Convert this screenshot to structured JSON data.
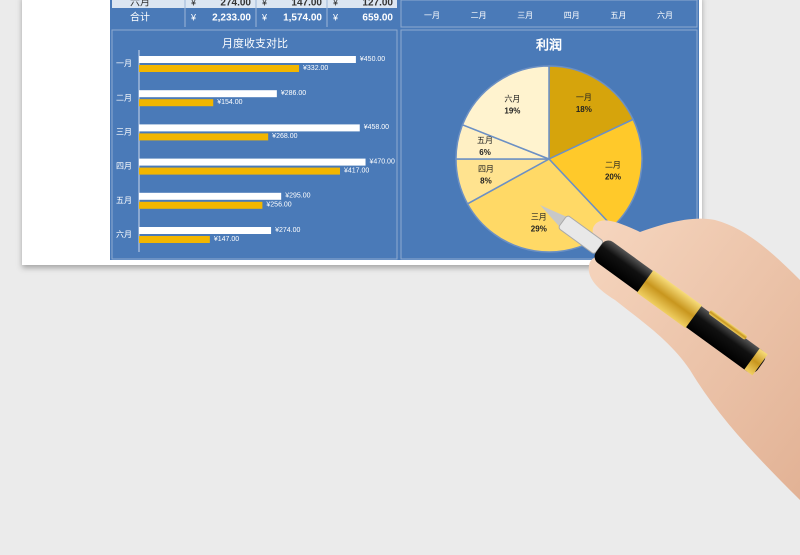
{
  "table": {
    "rows": [
      {
        "label": "六月",
        "cells": [
          {
            "currency": "¥",
            "value": "274.00"
          },
          {
            "currency": "¥",
            "value": "147.00"
          },
          {
            "currency": "¥",
            "value": "127.00"
          }
        ]
      },
      {
        "label": "合计",
        "cells": [
          {
            "currency": "¥",
            "value": "2,233.00"
          },
          {
            "currency": "¥",
            "value": "1,574.00"
          },
          {
            "currency": "¥",
            "value": "659.00"
          }
        ]
      }
    ]
  },
  "cropped_chart": {
    "categories": [
      "一月",
      "二月",
      "三月",
      "四月",
      "五月",
      "六月"
    ]
  },
  "chart_data": [
    {
      "type": "hbar",
      "title": "月度收支对比",
      "categories": [
        "一月",
        "二月",
        "三月",
        "四月",
        "五月",
        "六月"
      ],
      "xlim": [
        0,
        500
      ],
      "series": [
        {
          "color": "#ffffff",
          "values": [
            450,
            286,
            458,
            470,
            295,
            274
          ],
          "value_labels": [
            "¥450.00",
            "¥286.00",
            "¥458.00",
            "¥470.00",
            "¥295.00",
            "¥274.00"
          ]
        },
        {
          "color": "#f2b600",
          "values": [
            332,
            154,
            268,
            417,
            256,
            147
          ],
          "value_labels": [
            "¥332.00",
            "¥154.00",
            "¥268.00",
            "¥417.00",
            "¥256.00",
            "¥147.00"
          ]
        }
      ]
    },
    {
      "type": "pie",
      "title": "利润",
      "categories": [
        "一月",
        "二月",
        "三月",
        "四月",
        "五月",
        "六月"
      ],
      "values": [
        18,
        20,
        29,
        8,
        6,
        19
      ],
      "value_labels": [
        "18%",
        "20%",
        "29%",
        "8%",
        "6%",
        "19%"
      ],
      "colors": [
        "#d6a40c",
        "#ffc92a",
        "#ffd966",
        "#ffe38f",
        "#fff0c4",
        "#fff3cf"
      ]
    }
  ]
}
